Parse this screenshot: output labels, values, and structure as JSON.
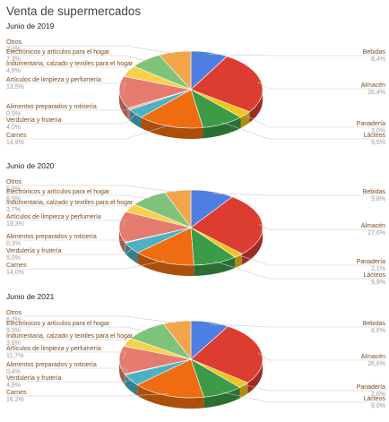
{
  "title": "Venta de supermercados",
  "chart_data": [
    {
      "type": "pie",
      "title": "Junio de 2019",
      "slices": [
        {
          "name": "Bebidas",
          "value": 8.4,
          "label": "8,4%",
          "color": "#4f7fe0"
        },
        {
          "name": "Almacén",
          "value": 26.4,
          "label": "26,4%",
          "color": "#dd3d30"
        },
        {
          "name": "Panadería",
          "value": 3.0,
          "label": "3,0%",
          "color": "#f2c418"
        },
        {
          "name": "Lácteos",
          "value": 9.5,
          "label": "9,5%",
          "color": "#3d9a47"
        },
        {
          "name": "Carnes",
          "value": 14.9,
          "label": "14,9%",
          "color": "#ef6c10"
        },
        {
          "name": "Verdulería y frutería",
          "value": 4.0,
          "label": "4,0%",
          "color": "#4ab2c2"
        },
        {
          "name": "Alimentos preparados y rotisería",
          "value": 0.9,
          "label": "0,9%",
          "color": "#f4a7a0"
        },
        {
          "name": "Artículos de limpieza y perfumería",
          "value": 13.5,
          "label": "13,5%",
          "color": "#e57b6f"
        },
        {
          "name": "Indumentaria, calzado y textiles para el hogar",
          "value": 4.8,
          "label": "4,8%",
          "color": "#f6d24c"
        },
        {
          "name": "Electrónicos y artículos para el hogar",
          "value": 7.3,
          "label": "7,3%",
          "color": "#7ec37a"
        },
        {
          "name": "Otros",
          "value": 7.3,
          "label": "7,3%",
          "color": "#f2a54a"
        }
      ]
    },
    {
      "type": "pie",
      "title": "Junio de 2020",
      "slices": [
        {
          "name": "Bebidas",
          "value": 9.8,
          "label": "9,8%",
          "color": "#4f7fe0"
        },
        {
          "name": "Almacén",
          "value": 27.6,
          "label": "27,6%",
          "color": "#dd3d30"
        },
        {
          "name": "Panadería",
          "value": 2.1,
          "label": "2,1%",
          "color": "#f2c418"
        },
        {
          "name": "Lácteos",
          "value": 9.9,
          "label": "9,9%",
          "color": "#3d9a47"
        },
        {
          "name": "Carnes",
          "value": 14.0,
          "label": "14,0%",
          "color": "#ef6c10"
        },
        {
          "name": "Verdulería y frutería",
          "value": 5.0,
          "label": "5,0%",
          "color": "#4ab2c2"
        },
        {
          "name": "Alimentos preparados y rotisería",
          "value": 0.3,
          "label": "0,3%",
          "color": "#f4a7a0"
        },
        {
          "name": "Artículos de limpieza y perfumería",
          "value": 13.3,
          "label": "13,3%",
          "color": "#e57b6f"
        },
        {
          "name": "Indumentaria, calzado y textiles para el hogar",
          "value": 3.7,
          "label": "3,7%",
          "color": "#f6d24c"
        },
        {
          "name": "Electrónicos y artículos para el hogar",
          "value": 8.5,
          "label": "8,5%",
          "color": "#7ec37a"
        },
        {
          "name": "Otros",
          "value": 5.9,
          "label": "5,9%",
          "color": "#f2a54a"
        }
      ]
    },
    {
      "type": "pie",
      "title": "Junio de 2021",
      "slices": [
        {
          "name": "Bebidas",
          "value": 8.6,
          "label": "8,6%",
          "color": "#4f7fe0"
        },
        {
          "name": "Almacén",
          "value": 26.6,
          "label": "26,6%",
          "color": "#dd3d30"
        },
        {
          "name": "Panadería",
          "value": 2.6,
          "label": "2,6%",
          "color": "#f2c418"
        },
        {
          "name": "Lácteos",
          "value": 9.0,
          "label": "9,0%",
          "color": "#3d9a47"
        },
        {
          "name": "Carnes",
          "value": 16.2,
          "label": "16,2%",
          "color": "#ef6c10"
        },
        {
          "name": "Verdulería y frutería",
          "value": 4.9,
          "label": "4,9%",
          "color": "#4ab2c2"
        },
        {
          "name": "Alimentos preparados y rotisería",
          "value": 0.4,
          "label": "0,4%",
          "color": "#f4a7a0"
        },
        {
          "name": "Artículos de limpieza y perfumería",
          "value": 11.7,
          "label": "11,7%",
          "color": "#e57b6f"
        },
        {
          "name": "Indumentaria, calzado y textiles para el hogar",
          "value": 3.6,
          "label": "3,6%",
          "color": "#f6d24c"
        },
        {
          "name": "Electrónicos y artículos para el hogar",
          "value": 9.5,
          "label": "9,5%",
          "color": "#7ec37a"
        },
        {
          "name": "Otros",
          "value": 6.2,
          "label": "6,2%",
          "color": "#f2a54a"
        }
      ]
    }
  ]
}
